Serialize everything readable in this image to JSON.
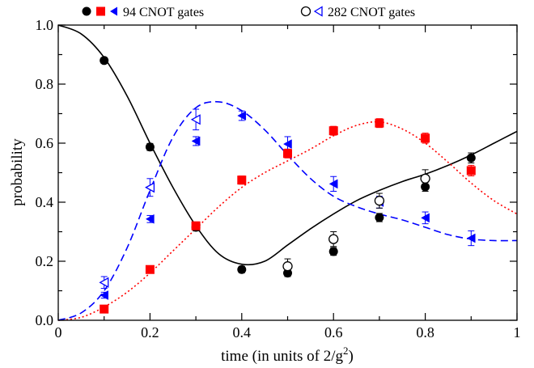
{
  "chart_data": {
    "type": "scatter",
    "title": "",
    "xlabel": "time  (in units of 2/g",
    "xlabel_superscript": "2",
    "xlabel_close": ")",
    "ylabel": "probability",
    "xlim": [
      0,
      1
    ],
    "ylim": [
      0,
      1
    ],
    "x_ticks": [
      "0",
      "0.2",
      "0.4",
      "0.6",
      "0.8",
      "1"
    ],
    "x_tick_values": [
      0,
      0.2,
      0.4,
      0.6,
      0.8,
      1
    ],
    "x_minor_ticks": [
      0.1,
      0.3,
      0.5,
      0.7,
      0.9
    ],
    "y_ticks": [
      "0.0",
      "0.2",
      "0.4",
      "0.6",
      "0.8",
      "1.0"
    ],
    "y_tick_values": [
      0,
      0.2,
      0.4,
      0.6,
      0.8,
      1.0
    ],
    "y_minor_ticks": [
      0.1,
      0.3,
      0.5,
      0.7,
      0.9
    ],
    "grid": false,
    "legend": {
      "placement": "top, outside plot",
      "entries": [
        {
          "label": "94 CNOT gates",
          "markers": [
            "filled-circle",
            "filled-square",
            "filled-left-triangle"
          ]
        },
        {
          "label": "282 CNOT gates",
          "markers": [
            "open-circle",
            "open-left-triangle"
          ]
        }
      ]
    },
    "colors": {
      "black": "#000000",
      "red": "#ff0000",
      "blue": "#0000ff"
    },
    "series": [
      {
        "gates": 94,
        "marker": "filled-circle",
        "color": "#000000",
        "x": [
          0.1,
          0.2,
          0.3,
          0.4,
          0.5,
          0.6,
          0.7,
          0.8,
          0.9
        ],
        "y": [
          0.88,
          0.587,
          0.315,
          0.172,
          0.16,
          0.233,
          0.348,
          0.452,
          0.55
        ],
        "err": [
          0.01,
          0.012,
          0.012,
          0.011,
          0.012,
          0.013,
          0.014,
          0.015,
          0.017
        ]
      },
      {
        "gates": 94,
        "marker": "filled-square",
        "color": "#ff0000",
        "x": [
          0.1,
          0.2,
          0.3,
          0.4,
          0.5,
          0.6,
          0.7,
          0.8,
          0.9
        ],
        "y": [
          0.038,
          0.172,
          0.32,
          0.475,
          0.565,
          0.642,
          0.668,
          0.617,
          0.507
        ],
        "err": [
          0.008,
          0.011,
          0.013,
          0.014,
          0.015,
          0.015,
          0.015,
          0.017,
          0.018
        ]
      },
      {
        "gates": 94,
        "marker": "filled-left-triangle",
        "color": "#0000ff",
        "x": [
          0.1,
          0.2,
          0.3,
          0.4,
          0.5,
          0.6,
          0.7,
          0.8,
          0.9
        ],
        "y": [
          0.085,
          0.343,
          0.607,
          0.693,
          0.597,
          0.462,
          0.4,
          0.347,
          0.278
        ],
        "err": [
          0.01,
          0.012,
          0.015,
          0.016,
          0.025,
          0.025,
          0.02,
          0.02,
          0.025
        ]
      },
      {
        "gates": 282,
        "marker": "open-circle",
        "color": "#000000",
        "x": [
          0.5,
          0.6,
          0.7,
          0.8
        ],
        "y": [
          0.183,
          0.275,
          0.405,
          0.48
        ],
        "err": [
          0.025,
          0.025,
          0.025,
          0.03
        ]
      },
      {
        "gates": 282,
        "marker": "open-left-triangle",
        "color": "#0000ff",
        "x": [
          0.1,
          0.2,
          0.3
        ],
        "y": [
          0.128,
          0.45,
          0.68
        ],
        "err": [
          0.02,
          0.03,
          0.035
        ]
      }
    ],
    "curves": [
      {
        "style": "solid",
        "color": "#000000",
        "x": [
          0,
          0.05,
          0.1,
          0.15,
          0.2,
          0.25,
          0.3,
          0.35,
          0.4,
          0.45,
          0.5,
          0.55,
          0.6,
          0.65,
          0.7,
          0.75,
          0.8,
          0.85,
          0.9,
          0.95,
          1.0
        ],
        "y": [
          1.0,
          0.97,
          0.89,
          0.76,
          0.6,
          0.45,
          0.32,
          0.225,
          0.19,
          0.2,
          0.255,
          0.31,
          0.36,
          0.405,
          0.44,
          0.47,
          0.495,
          0.525,
          0.56,
          0.6,
          0.64
        ]
      },
      {
        "style": "dotted",
        "color": "#ff0000",
        "x": [
          0,
          0.05,
          0.1,
          0.15,
          0.2,
          0.25,
          0.3,
          0.35,
          0.4,
          0.45,
          0.5,
          0.55,
          0.6,
          0.65,
          0.7,
          0.75,
          0.8,
          0.85,
          0.9,
          0.95,
          1.0
        ],
        "y": [
          0.0,
          0.01,
          0.045,
          0.095,
          0.16,
          0.235,
          0.31,
          0.385,
          0.45,
          0.5,
          0.54,
          0.58,
          0.625,
          0.66,
          0.672,
          0.648,
          0.6,
          0.535,
          0.465,
          0.405,
          0.36
        ]
      },
      {
        "style": "dashed",
        "color": "#0000ff",
        "x": [
          0,
          0.05,
          0.1,
          0.15,
          0.2,
          0.25,
          0.3,
          0.35,
          0.4,
          0.45,
          0.5,
          0.55,
          0.6,
          0.65,
          0.7,
          0.75,
          0.8,
          0.85,
          0.9,
          0.95,
          1.0
        ],
        "y": [
          0.0,
          0.025,
          0.1,
          0.245,
          0.44,
          0.62,
          0.72,
          0.74,
          0.71,
          0.645,
          0.56,
          0.48,
          0.42,
          0.385,
          0.36,
          0.34,
          0.315,
          0.29,
          0.275,
          0.27,
          0.27
        ]
      }
    ]
  }
}
